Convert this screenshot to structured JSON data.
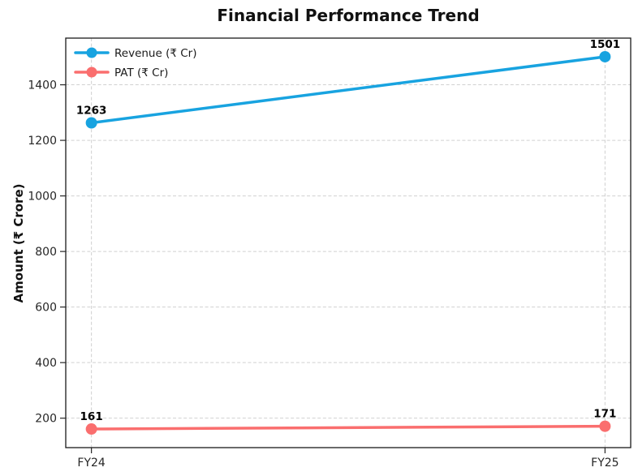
{
  "chart_data": {
    "type": "line",
    "title": "Financial Performance Trend",
    "xlabel": "",
    "ylabel": "Amount (₹ Crore)",
    "categories": [
      "FY24",
      "FY25"
    ],
    "series": [
      {
        "id": "revenue",
        "name": "Revenue (₹ Cr)",
        "values": [
          1263,
          1501
        ],
        "color": "#18a3e0",
        "marker": "circle"
      },
      {
        "id": "pat",
        "name": "PAT (₹ Cr)",
        "values": [
          161,
          171
        ],
        "color": "#fa6e6e",
        "marker": "circle"
      }
    ],
    "data_labels": [
      {
        "series": "revenue",
        "labels": [
          "1263",
          "1501"
        ]
      },
      {
        "series": "pat",
        "labels": [
          "161",
          "171"
        ]
      }
    ],
    "ylim": [
      94,
      1568
    ],
    "xlim": [
      -0.05,
      1.05
    ],
    "yticks": [
      200,
      400,
      600,
      800,
      1000,
      1200,
      1400
    ],
    "grid": {
      "visible": true,
      "style": "dashed",
      "color": "#d0d0d0"
    },
    "legend": {
      "position": "upper left",
      "frame": false
    },
    "colors": {
      "spine": "#1a1a1a",
      "tick_label": "#262626",
      "data_label": "#000000",
      "background": "#ffffff"
    }
  }
}
